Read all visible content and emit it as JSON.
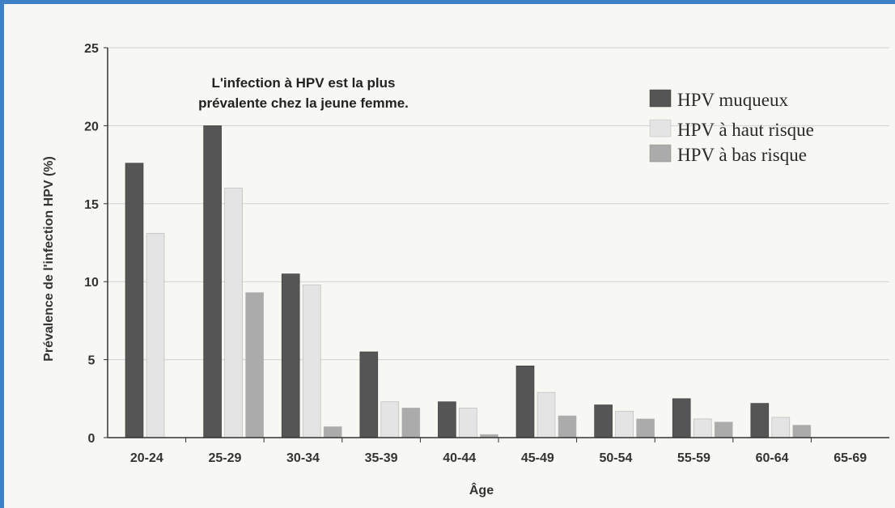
{
  "chart_data": {
    "type": "bar",
    "title": "",
    "annotation": [
      "L'infection à HPV est la plus",
      "prévalente chez la jeune femme."
    ],
    "xlabel": "Âge",
    "ylabel": "Prévalence de l'infection HPV (%)",
    "ylim": [
      0,
      25
    ],
    "yticks": [
      "0",
      "5",
      "10",
      "15",
      "20",
      "25"
    ],
    "grid": true,
    "legend_position": "top-right",
    "categories": [
      "20-24",
      "25-29",
      "30-34",
      "35-39",
      "40-44",
      "45-49",
      "50-54",
      "55-59",
      "60-64",
      "65-69"
    ],
    "series": [
      {
        "name": "HPV muqueux",
        "color": "#555555",
        "values": [
          17.6,
          20.0,
          10.5,
          5.5,
          2.3,
          4.6,
          2.1,
          2.5,
          2.2,
          0
        ]
      },
      {
        "name": "HPV à haut risque",
        "color": "#e4e4e4",
        "values": [
          13.1,
          16.0,
          9.8,
          2.3,
          1.9,
          2.9,
          1.7,
          1.2,
          1.3,
          0
        ]
      },
      {
        "name": "HPV à bas risque",
        "color": "#ababab",
        "values": [
          0,
          9.3,
          0.7,
          1.9,
          0.2,
          1.4,
          1.2,
          1.0,
          0.8,
          0
        ]
      }
    ]
  }
}
